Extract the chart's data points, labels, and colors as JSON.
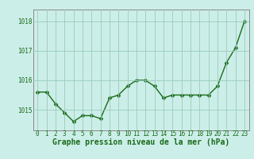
{
  "x": [
    0,
    1,
    2,
    3,
    4,
    5,
    6,
    7,
    8,
    9,
    10,
    11,
    12,
    13,
    14,
    15,
    16,
    17,
    18,
    19,
    20,
    21,
    22,
    23
  ],
  "y": [
    1015.6,
    1015.6,
    1015.2,
    1014.9,
    1014.6,
    1014.8,
    1014.8,
    1014.7,
    1015.4,
    1015.5,
    1015.8,
    1016.0,
    1016.0,
    1015.8,
    1015.4,
    1015.5,
    1015.5,
    1015.5,
    1015.5,
    1015.5,
    1015.8,
    1016.6,
    1017.1,
    1018.0
  ],
  "line_color": "#1a6b1a",
  "marker_color": "#1a6b1a",
  "bg_color": "#cceee8",
  "grid_color": "#99ccbb",
  "text_color": "#1a6b1a",
  "xlabel_label": "Graphe pression niveau de la mer (hPa)",
  "yticks": [
    1015,
    1016,
    1017,
    1018
  ],
  "ylim": [
    1014.3,
    1018.4
  ],
  "xlim": [
    -0.5,
    23.5
  ],
  "xticks": [
    0,
    1,
    2,
    3,
    4,
    5,
    6,
    7,
    8,
    9,
    10,
    11,
    12,
    13,
    14,
    15,
    16,
    17,
    18,
    19,
    20,
    21,
    22,
    23
  ],
  "tick_fontsize": 5.5,
  "label_fontsize": 7.0,
  "marker_size": 2.5,
  "line_width": 1.0
}
